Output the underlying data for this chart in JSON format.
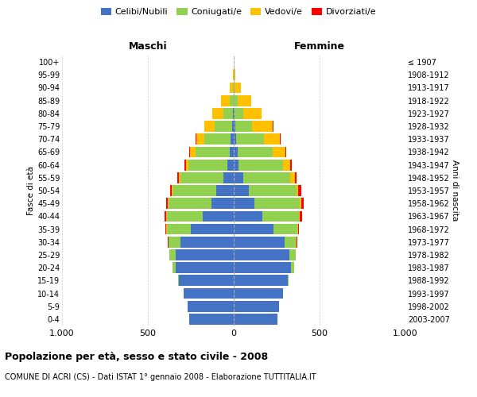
{
  "age_groups": [
    "100+",
    "95-99",
    "90-94",
    "85-89",
    "80-84",
    "75-79",
    "70-74",
    "65-69",
    "60-64",
    "55-59",
    "50-54",
    "45-49",
    "40-44",
    "35-39",
    "30-34",
    "25-29",
    "20-24",
    "15-19",
    "10-14",
    "5-9",
    "0-4"
  ],
  "birth_years": [
    "≤ 1907",
    "1908-1912",
    "1913-1917",
    "1918-1922",
    "1923-1927",
    "1928-1932",
    "1933-1937",
    "1938-1942",
    "1943-1947",
    "1948-1952",
    "1953-1957",
    "1958-1962",
    "1963-1967",
    "1968-1972",
    "1973-1977",
    "1978-1982",
    "1983-1987",
    "1988-1992",
    "1993-1997",
    "1998-2002",
    "2003-2007"
  ],
  "colors": {
    "celibi": "#4472C4",
    "coniugati": "#92D050",
    "vedovi": "#FFC000",
    "divorziati": "#FF0000"
  },
  "males": {
    "celibi": [
      0,
      0,
      0,
      2,
      5,
      10,
      18,
      25,
      35,
      60,
      100,
      130,
      180,
      250,
      310,
      340,
      340,
      320,
      290,
      270,
      260
    ],
    "coniugati": [
      0,
      0,
      5,
      20,
      55,
      100,
      155,
      195,
      230,
      250,
      255,
      250,
      210,
      140,
      70,
      35,
      15,
      5,
      2,
      0,
      0
    ],
    "vedovi": [
      0,
      5,
      20,
      50,
      65,
      60,
      45,
      35,
      15,
      10,
      5,
      4,
      3,
      2,
      1,
      0,
      0,
      0,
      0,
      0,
      0
    ],
    "divorziati": [
      0,
      0,
      0,
      0,
      0,
      2,
      2,
      3,
      5,
      10,
      10,
      10,
      8,
      6,
      3,
      2,
      0,
      0,
      0,
      0,
      0
    ]
  },
  "females": {
    "nubili": [
      0,
      0,
      0,
      2,
      4,
      8,
      15,
      22,
      30,
      55,
      90,
      120,
      165,
      230,
      295,
      325,
      335,
      315,
      285,
      265,
      255
    ],
    "coniugate": [
      0,
      0,
      5,
      20,
      50,
      100,
      160,
      205,
      255,
      275,
      275,
      265,
      215,
      140,
      70,
      35,
      15,
      5,
      2,
      0,
      0
    ],
    "vedove": [
      2,
      10,
      35,
      80,
      110,
      120,
      95,
      75,
      45,
      25,
      12,
      8,
      4,
      3,
      2,
      1,
      0,
      0,
      0,
      0,
      0
    ],
    "divorziate": [
      0,
      0,
      0,
      0,
      0,
      2,
      3,
      4,
      7,
      12,
      15,
      15,
      12,
      8,
      4,
      2,
      1,
      0,
      0,
      0,
      0
    ]
  },
  "title": "Popolazione per età, sesso e stato civile - 2008",
  "subtitle": "COMUNE DI ACRI (CS) - Dati ISTAT 1° gennaio 2008 - Elaborazione TUTTITALIA.IT",
  "header_left": "Maschi",
  "header_right": "Femmine",
  "ylabel_left": "Fasce di età",
  "ylabel_right": "Anni di nascita",
  "xlim": 1000,
  "xtick_labels": [
    "1.000",
    "500",
    "0",
    "500",
    "1.000"
  ],
  "bg_color": "#ffffff",
  "grid_color": "#cccccc",
  "legend_labels": [
    "Celibi/Nubili",
    "Coniugati/e",
    "Vedovi/e",
    "Divorziati/e"
  ]
}
